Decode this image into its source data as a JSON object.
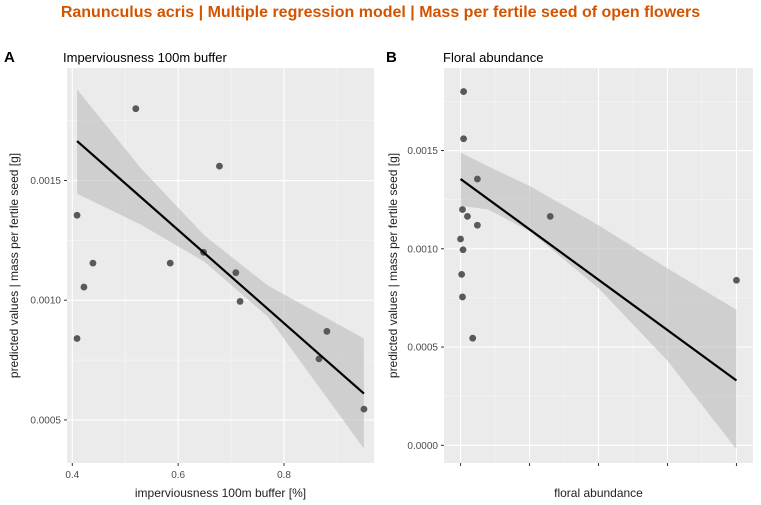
{
  "title": "Ranunculus acris | Multiple regression model | Mass per fertile seed of open flowers",
  "colors": {
    "title": "#d35400",
    "panel_bg": "#ebebeb",
    "grid_major": "#ffffff",
    "point": "#595959",
    "ribbon": "#bdbdbd",
    "line": "#000000",
    "text": "#222222",
    "tick_text": "#4d4d4d"
  },
  "chart_data": [
    {
      "type": "scatter",
      "tag": "A",
      "title": "Imperviousness 100m buffer",
      "xlabel": "imperviousness 100m buffer [%]",
      "ylabel": "predicted values | mass per fertile seed [g]",
      "xlim": [
        0.39,
        0.97
      ],
      "ylim": [
        0.00032,
        0.00197
      ],
      "x_ticks": [
        0.4,
        0.6,
        0.8
      ],
      "x_tick_labels": [
        "0.4",
        "0.6",
        "0.8"
      ],
      "y_ticks": [
        0.0005,
        0.001,
        0.0015
      ],
      "y_tick_labels": [
        "0.0005",
        "0.0010",
        "0.0015"
      ],
      "points": [
        {
          "x": 0.409,
          "y": 0.00084
        },
        {
          "x": 0.409,
          "y": 0.001355
        },
        {
          "x": 0.422,
          "y": 0.001055
        },
        {
          "x": 0.439,
          "y": 0.001155
        },
        {
          "x": 0.52,
          "y": 0.0018
        },
        {
          "x": 0.585,
          "y": 0.001155
        },
        {
          "x": 0.648,
          "y": 0.0012
        },
        {
          "x": 0.678,
          "y": 0.00156
        },
        {
          "x": 0.709,
          "y": 0.001115
        },
        {
          "x": 0.717,
          "y": 0.000995
        },
        {
          "x": 0.866,
          "y": 0.000755
        },
        {
          "x": 0.881,
          "y": 0.00087
        },
        {
          "x": 0.951,
          "y": 0.000545
        }
      ],
      "fit": {
        "x": [
          0.409,
          0.951
        ],
        "y": [
          0.001665,
          0.00061
        ]
      },
      "band": {
        "x": [
          0.409,
          0.53,
          0.65,
          0.77,
          0.951
        ],
        "lower": [
          0.001445,
          0.001315,
          0.00116,
          0.00093,
          0.00038
        ],
        "upper": [
          0.00188,
          0.00155,
          0.00127,
          0.00106,
          0.00084
        ]
      },
      "grid": true
    },
    {
      "type": "scatter",
      "tag": "B",
      "title": "Floral abundance",
      "xlabel": "floral abundance",
      "ylabel": "predicted values | mass per fertile seed [g]",
      "xlim": [
        -0.06,
        1.06
      ],
      "ylim": [
        -9e-05,
        0.00192
      ],
      "x_ticks": [
        0,
        0.25,
        0.5,
        0.75,
        1.0
      ],
      "x_tick_labels": [
        "",
        "",
        "",
        "",
        ""
      ],
      "y_ticks": [
        0,
        0.0005,
        0.001,
        0.0015
      ],
      "y_tick_labels": [
        "0.0000",
        "0.0005",
        "0.0010",
        "0.0015"
      ],
      "points": [
        {
          "x": 0.0,
          "y": 0.00105
        },
        {
          "x": 0.004,
          "y": 0.00087
        },
        {
          "x": 0.007,
          "y": 0.000755
        },
        {
          "x": 0.007,
          "y": 0.0012
        },
        {
          "x": 0.009,
          "y": 0.000995
        },
        {
          "x": 0.011,
          "y": 0.00156
        },
        {
          "x": 0.011,
          "y": 0.0018
        },
        {
          "x": 0.025,
          "y": 0.001165
        },
        {
          "x": 0.044,
          "y": 0.000545
        },
        {
          "x": 0.061,
          "y": 0.001355
        },
        {
          "x": 0.061,
          "y": 0.00112
        },
        {
          "x": 0.325,
          "y": 0.001165
        },
        {
          "x": 1.0,
          "y": 0.00084
        }
      ],
      "fit": {
        "x": [
          0.0,
          1.0
        ],
        "y": [
          0.001355,
          0.00033
        ]
      },
      "band": {
        "x": [
          0.0,
          0.1,
          0.25,
          0.5,
          0.75,
          1.0
        ],
        "lower": [
          0.00122,
          0.0012,
          0.00109,
          0.0008,
          0.00043,
          -2e-05
        ],
        "upper": [
          0.00149,
          0.00142,
          0.00132,
          0.00112,
          0.0009,
          0.00069
        ]
      },
      "grid": true
    }
  ]
}
